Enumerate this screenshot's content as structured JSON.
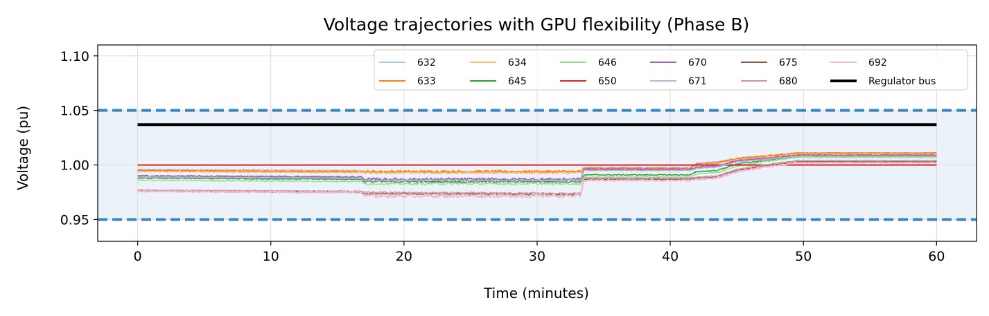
{
  "chart_data": {
    "type": "line",
    "title": "Voltage trajectories with GPU flexibility (Phase B)",
    "xlabel": "Time (minutes)",
    "ylabel": "Voltage (pu)",
    "xlim": [
      -3,
      63
    ],
    "ylim": [
      0.93,
      1.11
    ],
    "xticks": [
      0,
      10,
      20,
      30,
      40,
      50,
      60
    ],
    "yticks": [
      0.95,
      1.0,
      1.05,
      1.1
    ],
    "yticklabels": [
      "0.95",
      "1.00",
      "1.05",
      "1.10"
    ],
    "grid": true,
    "legend_position": "top-right",
    "band": {
      "ymin": 0.95,
      "ymax": 1.05,
      "color": "#dce8f4"
    },
    "limit_lines": [
      {
        "y": 0.95,
        "color": "#3a86be",
        "style": "dashed"
      },
      {
        "y": 1.05,
        "color": "#3a86be",
        "style": "dashed"
      }
    ],
    "series": [
      {
        "name": "632",
        "color": "#aec7e8",
        "width": 1.5,
        "noise": 0.0015,
        "x": [
          0,
          16.8,
          17,
          33.3,
          33.5,
          41.5,
          42,
          43.5,
          45,
          47,
          49.5,
          60
        ],
        "y": [
          0.996,
          0.995,
          0.994,
          0.994,
          0.998,
          0.998,
          1.002,
          1.003,
          1.006,
          1.008,
          1.011,
          1.011
        ]
      },
      {
        "name": "633",
        "color": "#ff7f0e",
        "width": 2,
        "noise": 0.0025,
        "x": [
          0,
          16.8,
          17,
          33.3,
          33.5,
          41.5,
          42,
          43.5,
          45,
          47,
          49.5,
          60
        ],
        "y": [
          0.995,
          0.994,
          0.994,
          0.994,
          0.997,
          0.997,
          1.001,
          1.002,
          1.006,
          1.008,
          1.011,
          1.011
        ]
      },
      {
        "name": "634",
        "color": "#ffbb78",
        "width": 1.5,
        "noise": 0.0015,
        "x": [
          0,
          16.8,
          17,
          33.3,
          33.5,
          41.5,
          42,
          43.5,
          45,
          47,
          49.5,
          60
        ],
        "y": [
          0.994,
          0.993,
          0.993,
          0.993,
          0.996,
          0.996,
          1.0,
          1.001,
          1.005,
          1.007,
          1.01,
          1.01
        ]
      },
      {
        "name": "645",
        "color": "#2ca02c",
        "width": 1.5,
        "noise": 0.002,
        "x": [
          0,
          16.8,
          17,
          33.3,
          33.5,
          41.5,
          42,
          43.5,
          45,
          47,
          49.5,
          60
        ],
        "y": [
          0.988,
          0.987,
          0.985,
          0.985,
          0.991,
          0.991,
          0.994,
          0.995,
          1.001,
          1.004,
          1.008,
          1.008
        ]
      },
      {
        "name": "646",
        "color": "#98df8a",
        "width": 1.5,
        "noise": 0.002,
        "x": [
          0,
          16.8,
          17,
          33.3,
          33.5,
          41.5,
          42,
          43.5,
          45,
          47,
          49.5,
          60
        ],
        "y": [
          0.986,
          0.985,
          0.983,
          0.983,
          0.989,
          0.989,
          0.992,
          0.993,
          0.999,
          1.003,
          1.007,
          1.007
        ]
      },
      {
        "name": "650",
        "color": "#d62728",
        "width": 2,
        "noise": 0,
        "x": [
          0,
          60
        ],
        "y": [
          1.0,
          1.0
        ]
      },
      {
        "name": "670",
        "color": "#9467bd",
        "width": 2,
        "noise": 0.0025,
        "x": [
          0,
          16.8,
          17,
          33.3,
          33.5,
          41.5,
          42,
          43.5,
          45,
          47,
          49.5,
          60
        ],
        "y": [
          0.99,
          0.989,
          0.987,
          0.987,
          0.996,
          0.996,
          0.998,
          0.999,
          1.004,
          1.006,
          1.009,
          1.009
        ]
      },
      {
        "name": "671",
        "color": "#c5b0d5",
        "width": 1.5,
        "noise": 0.0015,
        "x": [
          0,
          16.8,
          17,
          33.3,
          33.5,
          41.5,
          42,
          43.5,
          45,
          47,
          49.5,
          60
        ],
        "y": [
          0.989,
          0.988,
          0.986,
          0.986,
          0.995,
          0.995,
          0.997,
          0.998,
          1.003,
          1.005,
          1.008,
          1.008
        ]
      },
      {
        "name": "675",
        "color": "#8c564b",
        "width": 1.5,
        "noise": 0.0015,
        "x": [
          0,
          16.8,
          17,
          33.3,
          33.5,
          41.5,
          42,
          43.5,
          45,
          47,
          49.5,
          60
        ],
        "y": [
          0.976,
          0.975,
          0.974,
          0.973,
          0.987,
          0.987,
          0.988,
          0.989,
          0.995,
          0.999,
          1.003,
          1.003
        ]
      },
      {
        "name": "680",
        "color": "#c49c94",
        "width": 1.5,
        "noise": 0.0015,
        "x": [
          0,
          16.8,
          17,
          33.3,
          33.5,
          41.5,
          42,
          43.5,
          45,
          47,
          49.5,
          60
        ],
        "y": [
          0.977,
          0.976,
          0.975,
          0.974,
          0.988,
          0.988,
          0.989,
          0.99,
          0.996,
          1.0,
          1.004,
          1.004
        ]
      },
      {
        "name": "692",
        "color": "#f7b6d2",
        "width": 2,
        "noise": 0.003,
        "x": [
          0,
          16.8,
          17,
          33.3,
          33.5,
          41.5,
          42,
          43.5,
          45,
          47,
          49.5,
          60
        ],
        "y": [
          0.976,
          0.975,
          0.972,
          0.972,
          0.986,
          0.986,
          0.987,
          0.988,
          0.994,
          0.998,
          1.002,
          1.002
        ]
      },
      {
        "name": "Regulator bus",
        "color": "#000000",
        "width": 4,
        "noise": 0,
        "x": [
          0,
          60
        ],
        "y": [
          1.037,
          1.037
        ]
      }
    ]
  }
}
